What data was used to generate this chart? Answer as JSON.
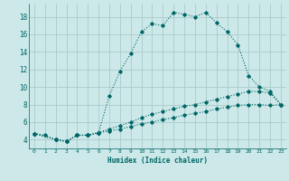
{
  "xlabel": "Humidex (Indice chaleur)",
  "bg_color": "#cce8e8",
  "grid_color": "#aacccc",
  "line_color": "#006666",
  "xlim": [
    -0.5,
    23.5
  ],
  "ylim": [
    3.0,
    19.5
  ],
  "xticks": [
    0,
    1,
    2,
    3,
    4,
    5,
    6,
    7,
    8,
    9,
    10,
    11,
    12,
    13,
    14,
    15,
    16,
    17,
    18,
    19,
    20,
    21,
    22,
    23
  ],
  "yticks": [
    4,
    6,
    8,
    10,
    12,
    14,
    16,
    18
  ],
  "line1_x": [
    0,
    1,
    2,
    3,
    4,
    5,
    6,
    7,
    8,
    9,
    10,
    11,
    12,
    13,
    14,
    15,
    16,
    17,
    18,
    19,
    20,
    21,
    22,
    23
  ],
  "line1_y": [
    4.7,
    4.5,
    4.0,
    3.8,
    4.5,
    4.5,
    4.8,
    9.0,
    11.8,
    13.8,
    16.3,
    17.2,
    17.0,
    18.5,
    18.3,
    18.0,
    18.5,
    17.3,
    16.3,
    14.8,
    11.3,
    10.0,
    9.5,
    8.0
  ],
  "line2_x": [
    0,
    2,
    3,
    4,
    5,
    6,
    7,
    8,
    9,
    10,
    11,
    12,
    13,
    14,
    15,
    16,
    17,
    18,
    19,
    20,
    21,
    22,
    23
  ],
  "line2_y": [
    4.7,
    4.0,
    3.8,
    4.5,
    4.5,
    4.8,
    5.2,
    5.6,
    6.0,
    6.5,
    6.9,
    7.2,
    7.5,
    7.8,
    8.0,
    8.3,
    8.6,
    8.9,
    9.2,
    9.5,
    9.5,
    9.3,
    8.0
  ],
  "line3_x": [
    0,
    2,
    3,
    4,
    5,
    6,
    7,
    8,
    9,
    10,
    11,
    12,
    13,
    14,
    15,
    16,
    17,
    18,
    19,
    20,
    21,
    22,
    23
  ],
  "line3_y": [
    4.7,
    4.0,
    3.8,
    4.5,
    4.5,
    4.8,
    5.0,
    5.2,
    5.5,
    5.8,
    6.0,
    6.3,
    6.5,
    6.8,
    7.0,
    7.2,
    7.5,
    7.7,
    7.9,
    8.0,
    8.0,
    7.9,
    8.0
  ]
}
